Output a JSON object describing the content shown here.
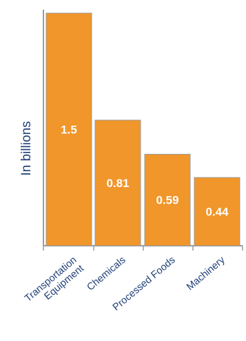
{
  "colors": {
    "bar": "#f0962a",
    "value_label": "#ffffff",
    "axis": "#9b9b9b",
    "category_label": "#1f3f78",
    "ylabel": "#1f3f78"
  },
  "chart_data": {
    "type": "bar",
    "title": "",
    "xlabel": "",
    "ylabel": "In billions",
    "categories": [
      [
        "Transportation",
        "Equipment"
      ],
      [
        "Chemicals"
      ],
      [
        "Processed Foods"
      ],
      [
        "Machinery"
      ]
    ],
    "values": [
      1.5,
      0.81,
      0.59,
      0.44
    ],
    "value_labels": [
      "1.5",
      "0.81",
      "0.59",
      "0.44"
    ],
    "ylim": [
      0,
      1.5
    ],
    "grid": false,
    "legend": "none"
  }
}
